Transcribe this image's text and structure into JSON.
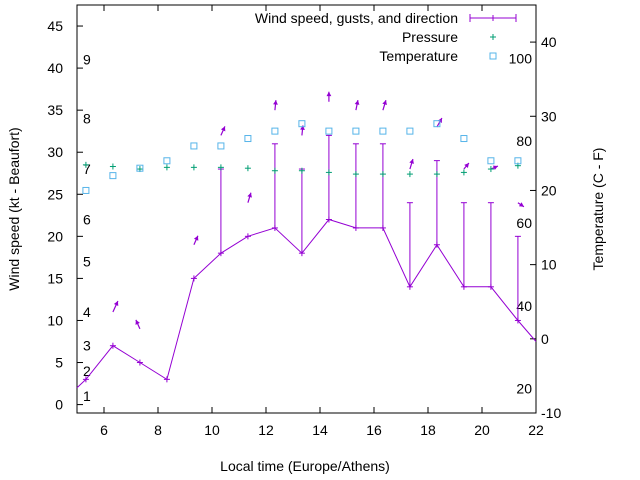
{
  "chart_data": {
    "type": "line",
    "xlabel": "Local time (Europe/Athens)",
    "ylabel": "Wind speed (kt - Beaufort)",
    "y2label": "Temperature (C - F)",
    "xlim": [
      5,
      22
    ],
    "ylim": [
      -1,
      47.5
    ],
    "y2lim": [
      -10,
      45
    ],
    "x_ticks": [
      "6",
      "8",
      "10",
      "12",
      "14",
      "16",
      "18",
      "20",
      "22"
    ],
    "y_ticks": [
      "0",
      "5",
      "10",
      "15",
      "20",
      "25",
      "30",
      "35",
      "40",
      "45"
    ],
    "y2_ticks": [
      "-10",
      "0",
      "10",
      "20",
      "30",
      "40"
    ],
    "beaufort_labels": [
      {
        "text": "1",
        "y": 1
      },
      {
        "text": "2",
        "y": 4
      },
      {
        "text": "3",
        "y": 7
      },
      {
        "text": "4",
        "y": 11
      },
      {
        "text": "5",
        "y": 17
      },
      {
        "text": "6",
        "y": 22
      },
      {
        "text": "7",
        "y": 28
      },
      {
        "text": "8",
        "y": 34
      },
      {
        "text": "9",
        "y": 41
      }
    ],
    "fahrenheit_labels": [
      {
        "text": "20",
        "c": -6.7
      },
      {
        "text": "40",
        "c": 4.4
      },
      {
        "text": "60",
        "c": 15.6
      },
      {
        "text": "80",
        "c": 26.7
      },
      {
        "text": "100",
        "c": 37.8
      }
    ],
    "legend_position": "top-right",
    "colors": {
      "wind": "#9400d3",
      "pressure": "#009e73",
      "temperature": "#56b4e9"
    },
    "series": [
      {
        "name": "Wind speed, gusts, and direction",
        "x": [
          5,
          5.33,
          6.33,
          7.33,
          8.33,
          9.33,
          10.33,
          11.33,
          12.33,
          13.33,
          14.33,
          15.33,
          16.33,
          17.33,
          18.33,
          19.33,
          20.33,
          21.33,
          22
        ],
        "y": [
          2,
          3,
          7,
          5,
          3,
          15,
          18,
          20,
          21,
          18,
          22,
          21,
          21,
          14,
          19,
          14,
          14,
          10,
          7.5
        ],
        "gusts": [
          null,
          null,
          null,
          null,
          null,
          null,
          28,
          null,
          31,
          28,
          32,
          31,
          31,
          24,
          29,
          24,
          24,
          20,
          null
        ],
        "arrows": [
          {
            "x": 6.33,
            "y": 11,
            "dx": 0.5,
            "dy": 1.1
          },
          {
            "x": 7.33,
            "y": 9,
            "dx": -0.4,
            "dy": 0.9
          },
          {
            "x": 9.33,
            "y": 19,
            "dx": 0.4,
            "dy": 0.9
          },
          {
            "x": 10.33,
            "y": 32,
            "dx": 0.4,
            "dy": 0.9
          },
          {
            "x": 11.33,
            "y": 24,
            "dx": 0.3,
            "dy": 1.0
          },
          {
            "x": 12.33,
            "y": 35,
            "dx": 0.1,
            "dy": 1.0
          },
          {
            "x": 13.33,
            "y": 32,
            "dx": 0.1,
            "dy": 1.0
          },
          {
            "x": 14.33,
            "y": 36,
            "dx": 0.0,
            "dy": 1.0
          },
          {
            "x": 15.33,
            "y": 35,
            "dx": 0.2,
            "dy": 1.0
          },
          {
            "x": 16.33,
            "y": 35,
            "dx": 0.3,
            "dy": 1.0
          },
          {
            "x": 17.33,
            "y": 28,
            "dx": 0.3,
            "dy": 1.0
          },
          {
            "x": 18.33,
            "y": 33,
            "dx": 0.5,
            "dy": 0.9
          },
          {
            "x": 19.33,
            "y": 28,
            "dx": 0.5,
            "dy": 0.6
          },
          {
            "x": 20.33,
            "y": 28,
            "dx": 0.7,
            "dy": 0.3
          },
          {
            "x": 21.33,
            "y": 24,
            "dx": 0.6,
            "dy": -0.4
          }
        ]
      },
      {
        "name": "Pressure",
        "x": [
          5.33,
          6.33,
          7.33,
          8.33,
          9.33,
          10.33,
          11.33,
          12.33,
          13.33,
          14.33,
          15.33,
          16.33,
          17.33,
          18.33,
          19.33,
          20.33,
          21.33
        ],
        "y": [
          28.5,
          28.3,
          28.0,
          28.2,
          28.2,
          28.2,
          28.1,
          27.8,
          27.8,
          27.6,
          27.4,
          27.4,
          27.4,
          27.4,
          27.6,
          28.0,
          28.4
        ]
      },
      {
        "name": "Temperature",
        "x": [
          5.33,
          6.33,
          7.33,
          8.33,
          9.33,
          10.33,
          11.33,
          12.33,
          13.33,
          14.33,
          15.33,
          16.33,
          17.33,
          18.33,
          19.33,
          20.33,
          21.33
        ],
        "y": [
          20,
          22,
          23,
          24,
          26,
          26,
          27,
          28,
          29,
          28,
          28,
          28,
          28,
          29,
          27,
          24,
          24
        ]
      }
    ]
  }
}
